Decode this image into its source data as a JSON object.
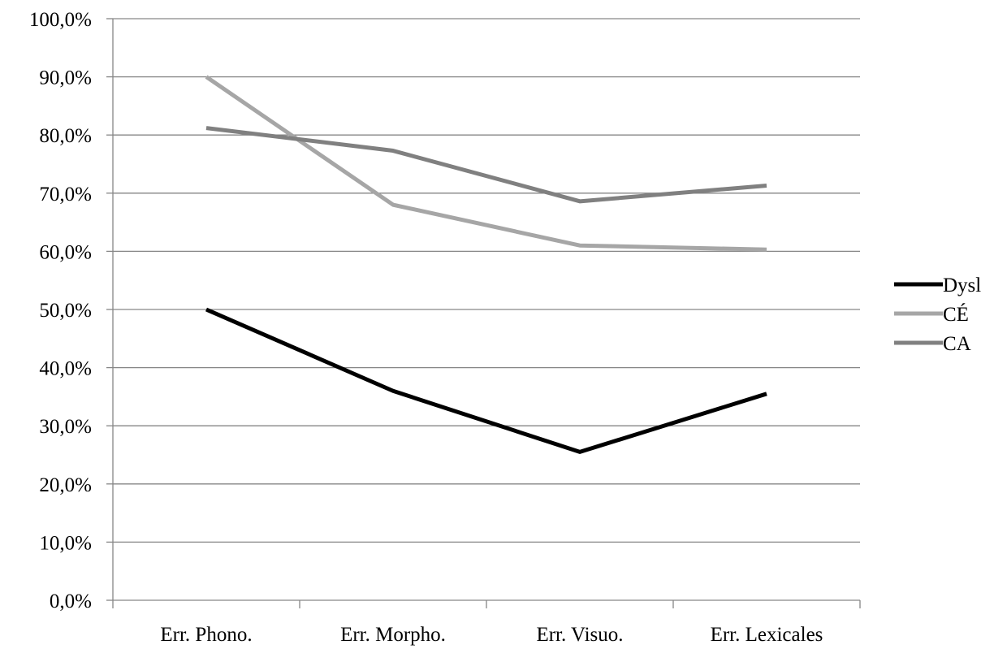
{
  "chart_data": {
    "type": "line",
    "categories": [
      "Err. Phono.",
      "Err. Morpho.",
      "Err. Visuo.",
      "Err. Lexicales"
    ],
    "ylim": [
      0,
      100
    ],
    "yticks": [
      "0,0%",
      "10,0%",
      "20,0%",
      "30,0%",
      "40,0%",
      "50,0%",
      "60,0%",
      "70,0%",
      "80,0%",
      "90,0%",
      "100,0%"
    ],
    "grid": true,
    "legend_position": "right",
    "series": [
      {
        "name": "Dysl",
        "color": "#000000",
        "values": [
          50.0,
          36.0,
          25.5,
          35.5
        ]
      },
      {
        "name": "CÉ",
        "color": "#a6a6a6",
        "values": [
          90.0,
          68.0,
          61.0,
          60.3
        ]
      },
      {
        "name": "CA",
        "color": "#808080",
        "values": [
          81.2,
          77.3,
          68.6,
          71.3
        ]
      }
    ]
  }
}
